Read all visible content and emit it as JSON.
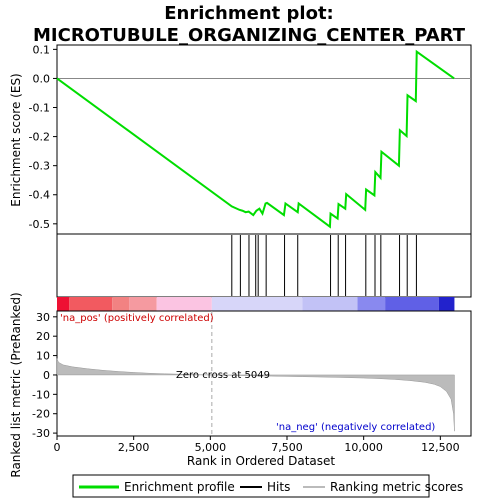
{
  "chart_data": {
    "type": "line",
    "title": "Enrichment plot: MICROTUBULE_ORGANIZING_CENTER_PART",
    "top_panel": {
      "ylabel": "Enrichment score (ES)",
      "ylim": [
        -0.535,
        0.115
      ],
      "yticks": [
        0.1,
        0.0,
        -0.1,
        -0.2,
        -0.3,
        -0.4,
        -0.5
      ],
      "ytick_labels": [
        "0.1",
        "0.0",
        "-0.1",
        "-0.2",
        "-0.3",
        "-0.4",
        "-0.5"
      ],
      "line_color": "#00dd00",
      "series": [
        {
          "points": [
            [
              0,
              0.0
            ],
            [
              5700,
              -0.44
            ],
            [
              5950,
              -0.452
            ],
            [
              6050,
              -0.455
            ],
            [
              6150,
              -0.46
            ],
            [
              6250,
              -0.458
            ],
            [
              6400,
              -0.47
            ],
            [
              6500,
              -0.455
            ],
            [
              6600,
              -0.448
            ],
            [
              6700,
              -0.465
            ],
            [
              6800,
              -0.43
            ],
            [
              6850,
              -0.428
            ],
            [
              7400,
              -0.47
            ],
            [
              7450,
              -0.43
            ],
            [
              7850,
              -0.46
            ],
            [
              7880,
              -0.43
            ],
            [
              8900,
              -0.51
            ],
            [
              8920,
              -0.465
            ],
            [
              9150,
              -0.482
            ],
            [
              9180,
              -0.432
            ],
            [
              9400,
              -0.448
            ],
            [
              9430,
              -0.398
            ],
            [
              10050,
              -0.452
            ],
            [
              10080,
              -0.382
            ],
            [
              10350,
              -0.402
            ],
            [
              10380,
              -0.322
            ],
            [
              10550,
              -0.342
            ],
            [
              10580,
              -0.252
            ],
            [
              11150,
              -0.3
            ],
            [
              11180,
              -0.178
            ],
            [
              11400,
              -0.198
            ],
            [
              11430,
              -0.058
            ],
            [
              11700,
              -0.078
            ],
            [
              11730,
              0.092
            ],
            [
              12950,
              0.0
            ]
          ]
        }
      ],
      "hits": [
        5700,
        5980,
        6260,
        6480,
        6560,
        6820,
        7420,
        7850,
        8920,
        9170,
        9410,
        10070,
        10370,
        10560,
        11170,
        11420,
        11720
      ]
    },
    "bottom_panel": {
      "ylabel": "Ranked list metric (PreRanked)",
      "xlabel": "Rank in Ordered Dataset",
      "xlim": [
        0,
        13500
      ],
      "ylim": [
        -31.5,
        33
      ],
      "yticks": [
        30,
        20,
        10,
        0,
        -10,
        -20,
        -30
      ],
      "ytick_labels": [
        "30",
        "20",
        "10",
        "0",
        "-10",
        "-20",
        "-30"
      ],
      "xticks": [
        0,
        2500,
        5000,
        7500,
        10000,
        12500
      ],
      "xtick_labels": [
        "0",
        "2,500",
        "5,000",
        "7,500",
        "10,000",
        "12,500"
      ],
      "zero_cross": 5049,
      "zero_cross_label": "Zero cross at 5049",
      "pos_label": "'na_pos' (positively correlated)",
      "neg_label": "'na_neg' (negatively correlated)",
      "metric_points": [
        [
          0,
          8.5
        ],
        [
          50,
          6.5
        ],
        [
          200,
          5.2
        ],
        [
          500,
          4.2
        ],
        [
          1000,
          3.2
        ],
        [
          1500,
          2.4
        ],
        [
          2000,
          1.8
        ],
        [
          2500,
          1.3
        ],
        [
          3000,
          0.9
        ],
        [
          3500,
          0.6
        ],
        [
          4000,
          0.4
        ],
        [
          4500,
          0.2
        ],
        [
          5049,
          0.0
        ],
        [
          6000,
          -0.3
        ],
        [
          7000,
          -0.6
        ],
        [
          8000,
          -0.9
        ],
        [
          9000,
          -1.2
        ],
        [
          10000,
          -1.6
        ],
        [
          10500,
          -1.9
        ],
        [
          11000,
          -2.3
        ],
        [
          11500,
          -2.9
        ],
        [
          12000,
          -3.8
        ],
        [
          12300,
          -4.8
        ],
        [
          12500,
          -6.0
        ],
        [
          12700,
          -8.5
        ],
        [
          12850,
          -12.5
        ],
        [
          12930,
          -20.0
        ],
        [
          12960,
          -29.0
        ]
      ]
    },
    "legend": [
      {
        "label": "Enrichment profile",
        "color": "#00dd00",
        "kind": "line"
      },
      {
        "label": "Hits",
        "color": "#000000",
        "kind": "line"
      },
      {
        "label": "Ranking metric scores",
        "color": "#bbbbbb",
        "kind": "line"
      }
    ],
    "colorbar": {
      "segments": [
        {
          "start": 0,
          "end": 400,
          "color": "#ee1133"
        },
        {
          "start": 400,
          "end": 1800,
          "color": "#f25a60"
        },
        {
          "start": 1800,
          "end": 2350,
          "color": "#f28282"
        },
        {
          "start": 2350,
          "end": 3250,
          "color": "#f59aa0"
        },
        {
          "start": 3250,
          "end": 5049,
          "color": "#fbc4e2"
        },
        {
          "start": 5049,
          "end": 8000,
          "color": "#d7d6f9"
        },
        {
          "start": 8000,
          "end": 9800,
          "color": "#c2c2f6"
        },
        {
          "start": 9800,
          "end": 10700,
          "color": "#8989ef"
        },
        {
          "start": 10700,
          "end": 12450,
          "color": "#6060e6"
        },
        {
          "start": 12450,
          "end": 12960,
          "color": "#2222cc"
        }
      ]
    }
  }
}
